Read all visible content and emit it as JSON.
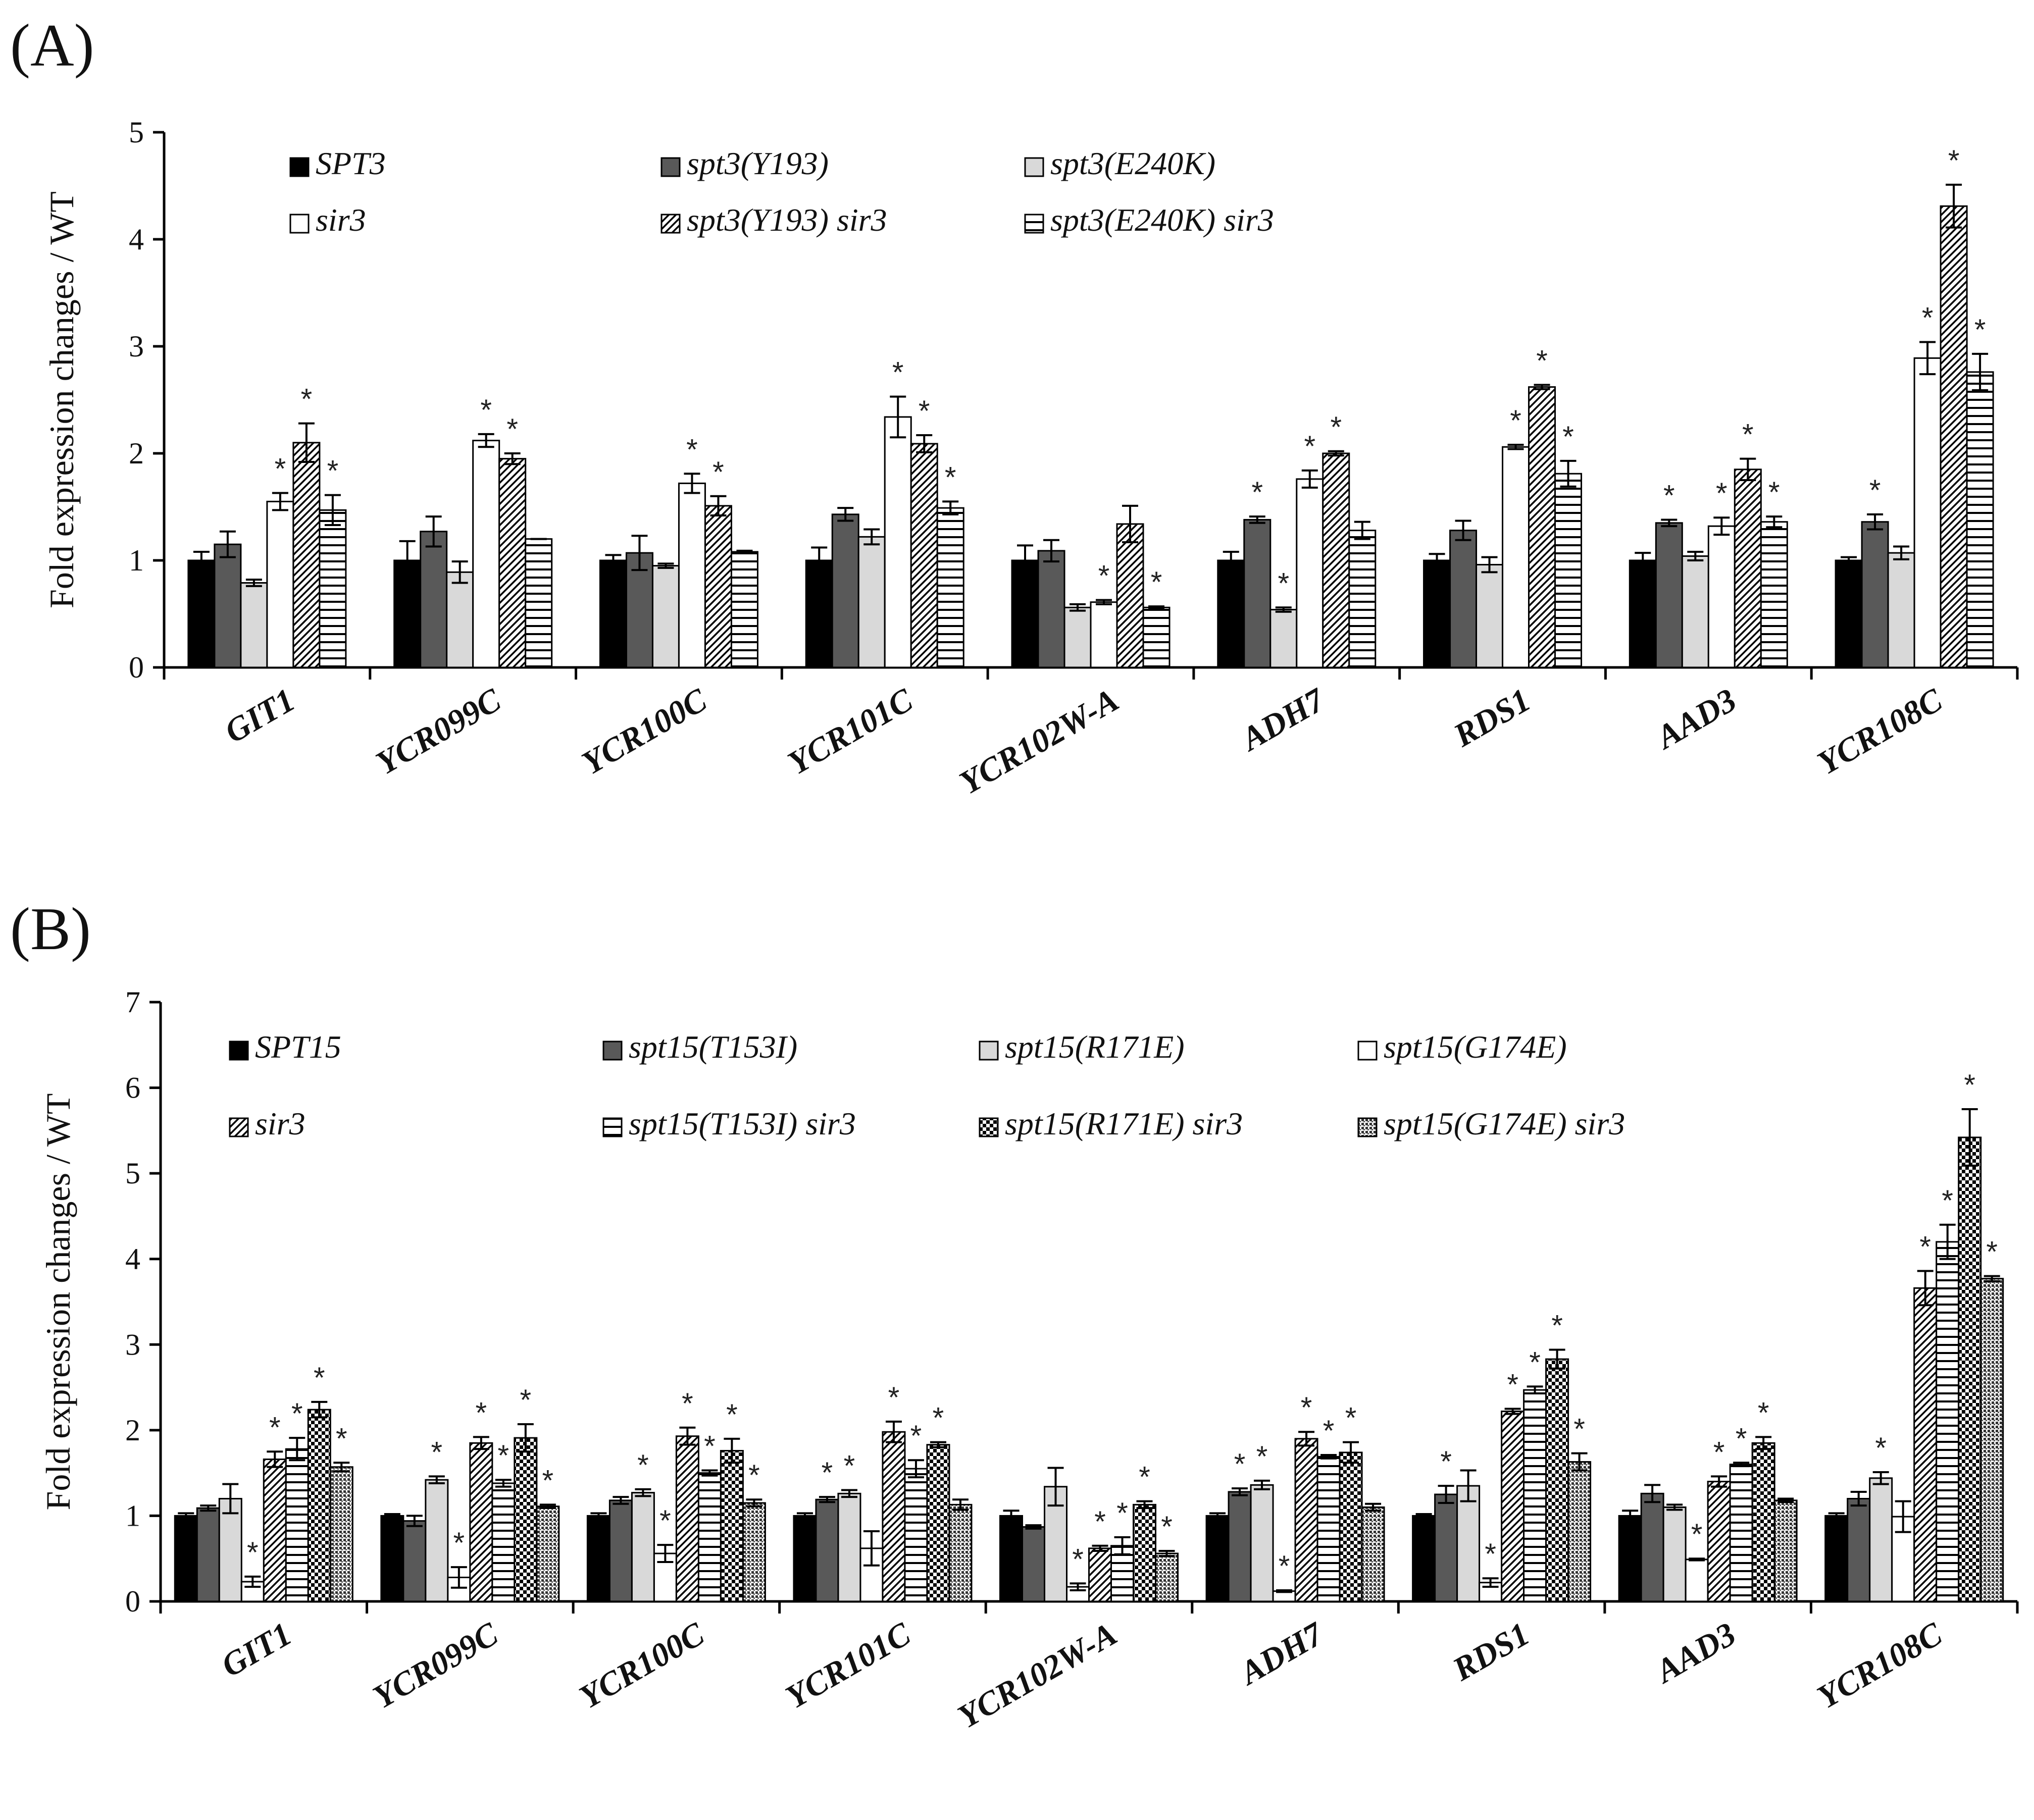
{
  "figure": {
    "panels": [
      {
        "tag": "(A)"
      },
      {
        "tag": "(B)"
      }
    ]
  },
  "colors": {
    "black": "#000000",
    "dark_gray": "#595959",
    "light_gray": "#d9d9d9",
    "white": "#ffffff",
    "stroke": "#000000"
  },
  "chart_data": [
    {
      "type": "bar",
      "panel": "(A)",
      "title": "",
      "xlabel": "",
      "ylabel": "Fold expression changes / WT",
      "ylim": [
        0,
        5
      ],
      "yticks": [
        "0",
        "1",
        "2",
        "3",
        "4",
        "5"
      ],
      "grid": false,
      "legend_position": "top",
      "categories": [
        "GIT1",
        "YCR099C",
        "YCR100C",
        "YCR101C",
        "YCR102W-A",
        "ADH7",
        "RDS1",
        "AAD3",
        "YCR108C"
      ],
      "series": [
        {
          "name": "SPT3",
          "pattern": "solid-black",
          "values": [
            1.0,
            1.0,
            1.0,
            1.0,
            1.0,
            1.0,
            1.0,
            1.0,
            1.0
          ],
          "errors": [
            0.08,
            0.18,
            0.05,
            0.12,
            0.14,
            0.08,
            0.06,
            0.07,
            0.03
          ],
          "significant": [
            false,
            false,
            false,
            false,
            false,
            false,
            false,
            false,
            false
          ]
        },
        {
          "name": "spt3(Y193)",
          "pattern": "solid-dark",
          "values": [
            1.15,
            1.27,
            1.07,
            1.43,
            1.09,
            1.38,
            1.28,
            1.35,
            1.36
          ],
          "errors": [
            0.12,
            0.14,
            0.16,
            0.06,
            0.1,
            0.03,
            0.09,
            0.03,
            0.07
          ],
          "significant": [
            false,
            false,
            false,
            false,
            false,
            true,
            false,
            true,
            true
          ]
        },
        {
          "name": "spt3(E240K)",
          "pattern": "solid-light",
          "values": [
            0.79,
            0.89,
            0.95,
            1.22,
            0.56,
            0.54,
            0.96,
            1.04,
            1.07
          ],
          "errors": [
            0.03,
            0.1,
            0.02,
            0.07,
            0.03,
            0.02,
            0.07,
            0.04,
            0.06
          ],
          "significant": [
            false,
            false,
            false,
            false,
            false,
            true,
            false,
            false,
            false
          ]
        },
        {
          "name": "sir3",
          "pattern": "white",
          "values": [
            1.55,
            2.12,
            1.72,
            2.34,
            0.61,
            1.76,
            2.06,
            1.32,
            2.89
          ],
          "errors": [
            0.08,
            0.06,
            0.09,
            0.19,
            0.02,
            0.08,
            0.02,
            0.08,
            0.15
          ],
          "significant": [
            true,
            true,
            true,
            true,
            true,
            true,
            true,
            true,
            true
          ]
        },
        {
          "name": "spt3(Y193) sir3",
          "pattern": "diagonal",
          "values": [
            2.1,
            1.95,
            1.51,
            2.09,
            1.34,
            2.0,
            2.62,
            1.85,
            4.31
          ],
          "errors": [
            0.18,
            0.05,
            0.09,
            0.08,
            0.17,
            0.02,
            0.02,
            0.1,
            0.2
          ],
          "significant": [
            true,
            true,
            true,
            true,
            false,
            true,
            true,
            true,
            true
          ]
        },
        {
          "name": "spt3(E240K) sir3",
          "pattern": "horizontal",
          "values": [
            1.47,
            1.2,
            1.08,
            1.49,
            0.56,
            1.28,
            1.81,
            1.36,
            2.76
          ],
          "errors": [
            0.14,
            0.0,
            0.01,
            0.06,
            0.01,
            0.08,
            0.12,
            0.05,
            0.17
          ],
          "significant": [
            true,
            false,
            false,
            true,
            true,
            false,
            true,
            true,
            true
          ]
        }
      ]
    },
    {
      "type": "bar",
      "panel": "(B)",
      "title": "",
      "xlabel": "",
      "ylabel": "Fold expression changes / WT",
      "ylim": [
        0,
        7
      ],
      "yticks": [
        "0",
        "1",
        "2",
        "3",
        "4",
        "5",
        "6",
        "7"
      ],
      "grid": false,
      "legend_position": "top",
      "categories": [
        "GIT1",
        "YCR099C",
        "YCR100C",
        "YCR101C",
        "YCR102W-A",
        "ADH7",
        "RDS1",
        "AAD3",
        "YCR108C"
      ],
      "series": [
        {
          "name": "SPT15",
          "pattern": "solid-black",
          "values": [
            1.0,
            1.0,
            1.0,
            1.0,
            1.0,
            1.0,
            1.0,
            1.0,
            1.0
          ],
          "errors": [
            0.03,
            0.02,
            0.03,
            0.03,
            0.06,
            0.03,
            0.02,
            0.06,
            0.03
          ],
          "significant": [
            false,
            false,
            false,
            false,
            false,
            false,
            false,
            false,
            false
          ]
        },
        {
          "name": "spt15(T153I)",
          "pattern": "solid-dark",
          "values": [
            1.09,
            0.94,
            1.18,
            1.19,
            0.87,
            1.28,
            1.25,
            1.26,
            1.2
          ],
          "errors": [
            0.03,
            0.06,
            0.04,
            0.03,
            0.02,
            0.04,
            0.1,
            0.1,
            0.08
          ],
          "significant": [
            false,
            false,
            false,
            true,
            false,
            true,
            true,
            false,
            false
          ]
        },
        {
          "name": "spt15(R171E)",
          "pattern": "solid-light",
          "values": [
            1.2,
            1.42,
            1.27,
            1.26,
            1.34,
            1.36,
            1.35,
            1.1,
            1.44
          ],
          "errors": [
            0.17,
            0.04,
            0.04,
            0.04,
            0.22,
            0.05,
            0.18,
            0.03,
            0.07
          ],
          "significant": [
            false,
            true,
            true,
            true,
            false,
            true,
            false,
            false,
            true
          ]
        },
        {
          "name": "spt15(G174E)",
          "pattern": "white",
          "values": [
            0.23,
            0.28,
            0.56,
            0.62,
            0.17,
            0.12,
            0.22,
            0.49,
            0.99
          ],
          "errors": [
            0.06,
            0.12,
            0.1,
            0.2,
            0.04,
            0.01,
            0.05,
            0.01,
            0.18
          ],
          "significant": [
            true,
            true,
            true,
            false,
            true,
            true,
            true,
            true,
            false
          ]
        },
        {
          "name": "sir3",
          "pattern": "diagonal",
          "values": [
            1.66,
            1.85,
            1.93,
            1.98,
            0.62,
            1.9,
            2.22,
            1.4,
            3.66
          ],
          "errors": [
            0.09,
            0.07,
            0.1,
            0.12,
            0.03,
            0.08,
            0.03,
            0.06,
            0.2
          ],
          "significant": [
            true,
            true,
            true,
            true,
            true,
            true,
            true,
            true,
            true
          ]
        },
        {
          "name": "spt15(T153I) sir3",
          "pattern": "horizontal",
          "values": [
            1.78,
            1.38,
            1.5,
            1.55,
            0.65,
            1.69,
            2.47,
            1.6,
            4.2
          ],
          "errors": [
            0.13,
            0.04,
            0.03,
            0.1,
            0.1,
            0.02,
            0.04,
            0.02,
            0.2
          ],
          "significant": [
            true,
            true,
            true,
            true,
            true,
            true,
            true,
            true,
            true
          ]
        },
        {
          "name": "spt15(R171E) sir3",
          "pattern": "checker",
          "values": [
            2.24,
            1.91,
            1.76,
            1.83,
            1.13,
            1.74,
            2.83,
            1.85,
            5.42
          ],
          "errors": [
            0.09,
            0.16,
            0.14,
            0.03,
            0.04,
            0.12,
            0.11,
            0.07,
            0.33
          ],
          "significant": [
            true,
            true,
            true,
            true,
            true,
            true,
            true,
            true,
            true
          ]
        },
        {
          "name": "spt15(G174E) sir3",
          "pattern": "dotted",
          "values": [
            1.57,
            1.11,
            1.15,
            1.13,
            0.56,
            1.1,
            1.63,
            1.18,
            3.77
          ],
          "errors": [
            0.05,
            0.02,
            0.04,
            0.06,
            0.03,
            0.04,
            0.1,
            0.02,
            0.03
          ],
          "significant": [
            true,
            true,
            true,
            false,
            true,
            false,
            true,
            false,
            true
          ]
        }
      ]
    }
  ]
}
